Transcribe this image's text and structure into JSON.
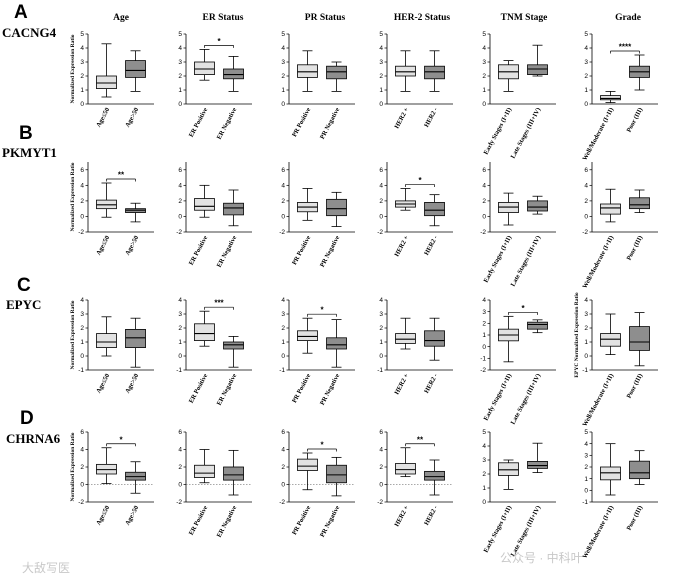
{
  "row_letters": [
    "A",
    "B",
    "C",
    "D"
  ],
  "gene_names": [
    "CACNG4",
    "PKMYT1",
    "EPYC",
    "CHRNA6"
  ],
  "column_titles": [
    "Age",
    "ER Status",
    "PR Status",
    "HER-2 Status",
    "TNM Stage",
    "Grade"
  ],
  "y_axis_label": "Normalized Expression Ratio",
  "y_axis_label_epyc_grade": "EPYC Normalized Expression Ratio",
  "watermark": "公众号 · 中科叶",
  "watermark_left": "大敌写医",
  "colors": {
    "light_box": "#e2e2e2",
    "dark_box": "#8e8e8e",
    "line": "#000000",
    "ref_line": "#555555"
  },
  "chart_data": [
    {
      "type": "box",
      "row": 0,
      "col": 0,
      "categories": [
        "Age≤50",
        "Age>50"
      ],
      "ylim": [
        0,
        5
      ],
      "yticks": [
        0,
        1,
        2,
        3,
        4,
        5
      ],
      "series": [
        {
          "min": 0.5,
          "q1": 1.1,
          "median": 1.5,
          "q3": 2.0,
          "max": 4.3
        },
        {
          "min": 0.9,
          "q1": 1.9,
          "median": 2.4,
          "q3": 3.1,
          "max": 3.8
        }
      ],
      "significance": ""
    },
    {
      "type": "box",
      "row": 0,
      "col": 1,
      "categories": [
        "ER Positive",
        "ER Negative"
      ],
      "ylim": [
        0,
        5
      ],
      "yticks": [
        0,
        1,
        2,
        3,
        4,
        5
      ],
      "series": [
        {
          "min": 1.7,
          "q1": 2.1,
          "median": 2.5,
          "q3": 3.0,
          "max": 3.9
        },
        {
          "min": 0.9,
          "q1": 1.8,
          "median": 2.1,
          "q3": 2.5,
          "max": 3.4
        }
      ],
      "significance": "*"
    },
    {
      "type": "box",
      "row": 0,
      "col": 2,
      "categories": [
        "PR Positive",
        "PR Negative"
      ],
      "ylim": [
        0,
        5
      ],
      "yticks": [
        0,
        1,
        2,
        3,
        4,
        5
      ],
      "series": [
        {
          "min": 0.9,
          "q1": 1.9,
          "median": 2.3,
          "q3": 2.8,
          "max": 3.8
        },
        {
          "min": 0.9,
          "q1": 1.8,
          "median": 2.3,
          "q3": 2.7,
          "max": 3.0
        }
      ],
      "significance": ""
    },
    {
      "type": "box",
      "row": 0,
      "col": 3,
      "categories": [
        "HER2 +",
        "HER2 -"
      ],
      "ylim": [
        0,
        5
      ],
      "yticks": [
        0,
        1,
        2,
        3,
        4,
        5
      ],
      "series": [
        {
          "min": 0.9,
          "q1": 2.0,
          "median": 2.3,
          "q3": 2.7,
          "max": 3.8
        },
        {
          "min": 0.9,
          "q1": 1.8,
          "median": 2.3,
          "q3": 2.7,
          "max": 3.8
        }
      ],
      "significance": ""
    },
    {
      "type": "box",
      "row": 0,
      "col": 4,
      "categories": [
        "Early Stages (I+II)",
        "Late Stages (III+IV)"
      ],
      "ylim": [
        0,
        5
      ],
      "yticks": [
        0,
        1,
        2,
        3,
        4,
        5
      ],
      "series": [
        {
          "min": 0.9,
          "q1": 1.8,
          "median": 2.3,
          "q3": 2.8,
          "max": 3.1
        },
        {
          "min": 2.0,
          "q1": 2.1,
          "median": 2.5,
          "q3": 2.8,
          "max": 4.2
        }
      ],
      "significance": ""
    },
    {
      "type": "box",
      "row": 0,
      "col": 5,
      "categories": [
        "Well/Moderate (I+II)",
        "Poor (III)"
      ],
      "ylim": [
        0,
        5
      ],
      "yticks": [
        0,
        1,
        2,
        3,
        4,
        5
      ],
      "series": [
        {
          "min": 0.1,
          "q1": 0.3,
          "median": 0.4,
          "q3": 0.6,
          "max": 0.9
        },
        {
          "min": 1.0,
          "q1": 1.9,
          "median": 2.3,
          "q3": 2.7,
          "max": 3.5
        }
      ],
      "significance": "****"
    },
    {
      "type": "box",
      "row": 1,
      "col": 0,
      "categories": [
        "Age≤50",
        "Age>50"
      ],
      "ylim": [
        -2,
        7
      ],
      "yticks": [
        -2,
        0,
        2,
        4,
        6
      ],
      "refline": 0,
      "series": [
        {
          "min": -0.1,
          "q1": 1.0,
          "median": 1.5,
          "q3": 2.1,
          "max": 4.3
        },
        {
          "min": -0.7,
          "q1": 0.5,
          "median": 0.8,
          "q3": 1.0,
          "max": 1.7
        }
      ],
      "significance": "**"
    },
    {
      "type": "box",
      "row": 1,
      "col": 1,
      "categories": [
        "ER Positive",
        "ER Negative"
      ],
      "ylim": [
        -2,
        7
      ],
      "yticks": [
        -2,
        0,
        2,
        4,
        6
      ],
      "refline": 0,
      "series": [
        {
          "min": -0.1,
          "q1": 0.8,
          "median": 1.3,
          "q3": 2.3,
          "max": 4.0
        },
        {
          "min": -1.2,
          "q1": 0.2,
          "median": 1.1,
          "q3": 1.7,
          "max": 3.4
        }
      ],
      "significance": ""
    },
    {
      "type": "box",
      "row": 1,
      "col": 2,
      "categories": [
        "PR Positive",
        "PR Negative"
      ],
      "ylim": [
        -2,
        7
      ],
      "yticks": [
        -2,
        0,
        2,
        4,
        6
      ],
      "refline": 0,
      "series": [
        {
          "min": -0.5,
          "q1": 0.6,
          "median": 1.2,
          "q3": 1.8,
          "max": 3.6
        },
        {
          "min": -1.3,
          "q1": 0.1,
          "median": 1.0,
          "q3": 2.2,
          "max": 3.1
        }
      ],
      "significance": ""
    },
    {
      "type": "box",
      "row": 1,
      "col": 3,
      "categories": [
        "HER2 +",
        "HER2 -"
      ],
      "ylim": [
        -2,
        7
      ],
      "yticks": [
        -2,
        0,
        2,
        4,
        6
      ],
      "refline": 0,
      "series": [
        {
          "min": 0.8,
          "q1": 1.2,
          "median": 1.6,
          "q3": 2.0,
          "max": 3.6
        },
        {
          "min": -1.2,
          "q1": 0.1,
          "median": 0.8,
          "q3": 1.8,
          "max": 2.8
        }
      ],
      "significance": "*"
    },
    {
      "type": "box",
      "row": 1,
      "col": 4,
      "categories": [
        "Early Stages (I+II)",
        "Late Stages (III+IV)"
      ],
      "ylim": [
        -2,
        7
      ],
      "yticks": [
        -2,
        0,
        2,
        4,
        6
      ],
      "refline": 0,
      "series": [
        {
          "min": -1.1,
          "q1": 0.5,
          "median": 1.2,
          "q3": 1.8,
          "max": 3.0
        },
        {
          "min": 0.3,
          "q1": 0.7,
          "median": 1.2,
          "q3": 2.0,
          "max": 2.6
        }
      ],
      "significance": ""
    },
    {
      "type": "box",
      "row": 1,
      "col": 5,
      "categories": [
        "Well/Moderate (I+II)",
        "Poor (III)"
      ],
      "ylim": [
        -2,
        7
      ],
      "yticks": [
        -2,
        0,
        2,
        4,
        6
      ],
      "refline": 0,
      "series": [
        {
          "min": -0.7,
          "q1": 0.3,
          "median": 1.1,
          "q3": 1.6,
          "max": 3.5
        },
        {
          "min": 0.5,
          "q1": 1.0,
          "median": 1.5,
          "q3": 2.4,
          "max": 3.4
        }
      ],
      "significance": ""
    },
    {
      "type": "box",
      "row": 2,
      "col": 0,
      "categories": [
        "Age≤50",
        "Age>50"
      ],
      "ylim": [
        -1,
        4
      ],
      "yticks": [
        -1,
        0,
        1,
        2,
        3,
        4
      ],
      "refline": 0,
      "series": [
        {
          "min": 0.0,
          "q1": 0.6,
          "median": 1.0,
          "q3": 1.6,
          "max": 2.8
        },
        {
          "min": -0.8,
          "q1": 0.6,
          "median": 1.3,
          "q3": 1.9,
          "max": 2.7
        }
      ],
      "significance": ""
    },
    {
      "type": "box",
      "row": 2,
      "col": 1,
      "categories": [
        "ER Positive",
        "ER Negative"
      ],
      "ylim": [
        -1,
        4
      ],
      "yticks": [
        -1,
        0,
        1,
        2,
        3,
        4
      ],
      "refline": 0,
      "series": [
        {
          "min": 0.7,
          "q1": 1.1,
          "median": 1.6,
          "q3": 2.3,
          "max": 3.2
        },
        {
          "min": -0.8,
          "q1": 0.5,
          "median": 0.8,
          "q3": 1.0,
          "max": 1.4
        }
      ],
      "significance": "***"
    },
    {
      "type": "box",
      "row": 2,
      "col": 2,
      "categories": [
        "PR Positive",
        "PR Negative"
      ],
      "ylim": [
        -1,
        4
      ],
      "yticks": [
        -1,
        0,
        1,
        2,
        3,
        4
      ],
      "refline": 0,
      "series": [
        {
          "min": 0.2,
          "q1": 1.1,
          "median": 1.4,
          "q3": 1.8,
          "max": 2.7
        },
        {
          "min": -0.8,
          "q1": 0.5,
          "median": 0.8,
          "q3": 1.3,
          "max": 2.6
        }
      ],
      "significance": "*"
    },
    {
      "type": "box",
      "row": 2,
      "col": 3,
      "categories": [
        "HER2 +",
        "HER2 -"
      ],
      "ylim": [
        -1,
        4
      ],
      "yticks": [
        -1,
        0,
        1,
        2,
        3,
        4
      ],
      "refline": 0,
      "series": [
        {
          "min": 0.5,
          "q1": 0.9,
          "median": 1.2,
          "q3": 1.6,
          "max": 2.7
        },
        {
          "min": -0.3,
          "q1": 0.7,
          "median": 1.1,
          "q3": 1.8,
          "max": 2.7
        }
      ],
      "significance": ""
    },
    {
      "type": "box",
      "row": 2,
      "col": 4,
      "categories": [
        "Early Stages (I+II)",
        "Late Stages (III+IV)"
      ],
      "ylim": [
        -2,
        4
      ],
      "yticks": [
        -2,
        -1,
        0,
        1,
        2,
        3,
        4
      ],
      "refline": 0,
      "series": [
        {
          "min": -1.3,
          "q1": 0.5,
          "median": 1.0,
          "q3": 1.5,
          "max": 2.6
        },
        {
          "min": 1.2,
          "q1": 1.5,
          "median": 1.9,
          "q3": 2.1,
          "max": 2.3
        }
      ],
      "significance": "*"
    },
    {
      "type": "box",
      "row": 2,
      "col": 5,
      "categories": [
        "Well/Moderate (I+II)",
        "Poor (III)"
      ],
      "ylim": [
        -1,
        4
      ],
      "yticks": [
        -1,
        0,
        1,
        2,
        3,
        4
      ],
      "refline": 0,
      "series": [
        {
          "min": 0.1,
          "q1": 0.7,
          "median": 1.2,
          "q3": 1.6,
          "max": 3.0
        },
        {
          "min": -0.7,
          "q1": 0.4,
          "median": 1.0,
          "q3": 2.1,
          "max": 3.1
        }
      ],
      "significance": ""
    },
    {
      "type": "box",
      "row": 3,
      "col": 0,
      "categories": [
        "Age≤50",
        "Age>50"
      ],
      "ylim": [
        -2,
        6
      ],
      "yticks": [
        -2,
        0,
        2,
        4,
        6
      ],
      "refline": 0,
      "series": [
        {
          "min": 0.1,
          "q1": 1.2,
          "median": 1.7,
          "q3": 2.3,
          "max": 4.2
        },
        {
          "min": -1.0,
          "q1": 0.5,
          "median": 0.9,
          "q3": 1.4,
          "max": 2.6
        }
      ],
      "significance": "*"
    },
    {
      "type": "box",
      "row": 3,
      "col": 1,
      "categories": [
        "ER Positive",
        "ER Negative"
      ],
      "ylim": [
        -2,
        6
      ],
      "yticks": [
        -2,
        0,
        2,
        4,
        6
      ],
      "refline": 0,
      "series": [
        {
          "min": 0.2,
          "q1": 0.8,
          "median": 1.3,
          "q3": 2.2,
          "max": 4.0
        },
        {
          "min": -1.2,
          "q1": 0.5,
          "median": 1.1,
          "q3": 2.0,
          "max": 3.9
        }
      ],
      "significance": ""
    },
    {
      "type": "box",
      "row": 3,
      "col": 2,
      "categories": [
        "PR Positive",
        "PR Negative"
      ],
      "ylim": [
        -2,
        6
      ],
      "yticks": [
        -2,
        0,
        2,
        4,
        6
      ],
      "refline": 0,
      "series": [
        {
          "min": -0.6,
          "q1": 1.6,
          "median": 2.1,
          "q3": 2.9,
          "max": 3.6
        },
        {
          "min": -1.3,
          "q1": 0.2,
          "median": 1.1,
          "q3": 2.2,
          "max": 3.1
        }
      ],
      "significance": "*"
    },
    {
      "type": "box",
      "row": 3,
      "col": 3,
      "categories": [
        "HER2 +",
        "HER2 -"
      ],
      "ylim": [
        -2,
        6
      ],
      "yticks": [
        -2,
        0,
        2,
        4,
        6
      ],
      "refline": 0,
      "series": [
        {
          "min": 0.9,
          "q1": 1.2,
          "median": 1.7,
          "q3": 2.4,
          "max": 4.2
        },
        {
          "min": -1.2,
          "q1": 0.5,
          "median": 0.9,
          "q3": 1.5,
          "max": 2.8
        }
      ],
      "significance": "**"
    },
    {
      "type": "box",
      "row": 3,
      "col": 4,
      "categories": [
        "Early Stages (I+II)",
        "Late Stages (III+IV)"
      ],
      "ylim": [
        0,
        5
      ],
      "yticks": [
        0,
        1,
        2,
        3,
        4,
        5
      ],
      "series": [
        {
          "min": 0.9,
          "q1": 1.9,
          "median": 2.3,
          "q3": 2.8,
          "max": 3.0
        },
        {
          "min": 2.1,
          "q1": 2.4,
          "median": 2.6,
          "q3": 2.9,
          "max": 4.2
        }
      ],
      "significance": ""
    },
    {
      "type": "box",
      "row": 3,
      "col": 5,
      "categories": [
        "Well/Moderate (I+II)",
        "Poor (III)"
      ],
      "ylim": [
        -1,
        5
      ],
      "yticks": [
        -1,
        0,
        1,
        2,
        3,
        4,
        5
      ],
      "series": [
        {
          "min": -0.4,
          "q1": 0.9,
          "median": 1.5,
          "q3": 2.0,
          "max": 4.0
        },
        {
          "min": 0.5,
          "q1": 1.0,
          "median": 1.5,
          "q3": 2.5,
          "max": 3.4
        }
      ],
      "significance": ""
    }
  ]
}
